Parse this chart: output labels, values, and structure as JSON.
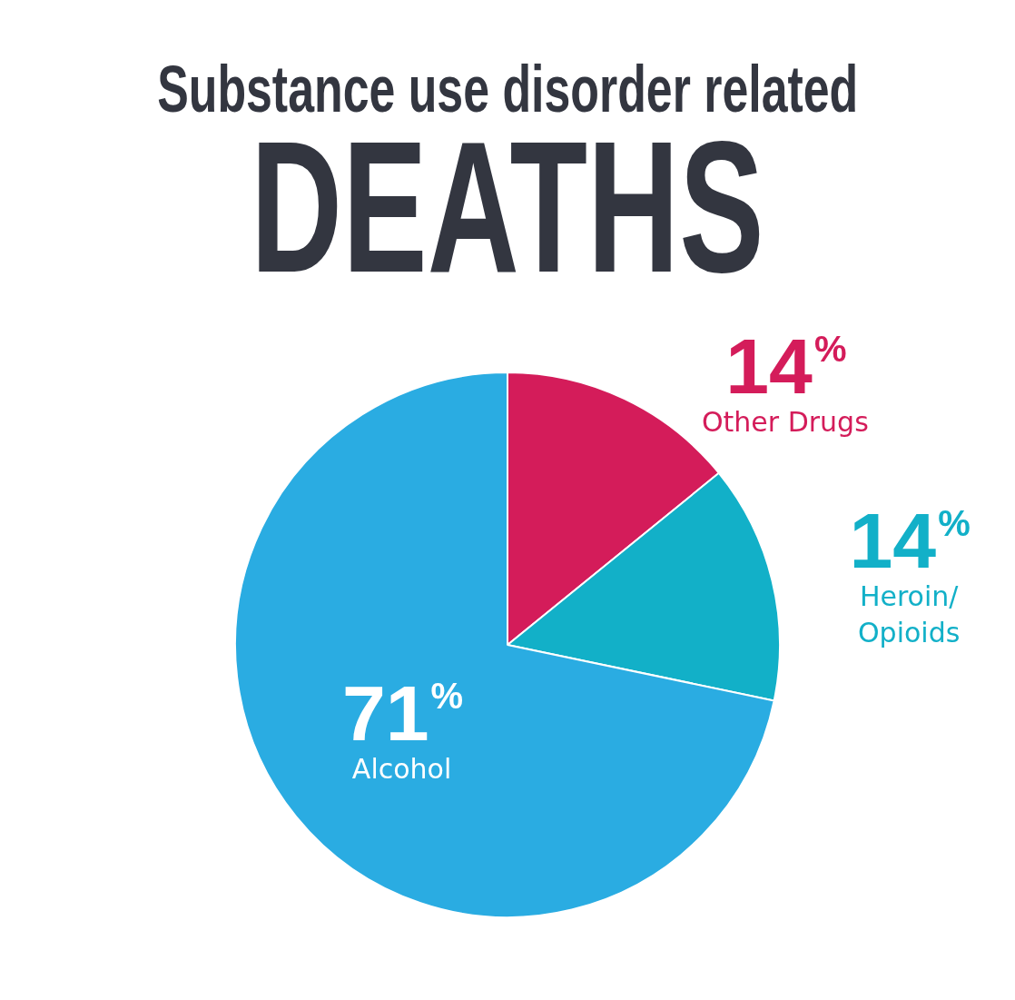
{
  "chart_data": {
    "type": "pie",
    "title": "Substance use disorder related",
    "subtitle": "DEATHS",
    "categories": [
      "Other Drugs",
      "Heroin/Opioids",
      "Alcohol"
    ],
    "values": [
      14,
      14,
      71
    ],
    "value_labels": [
      "14%",
      "14%",
      "71%"
    ],
    "colors": [
      "#d41c5a",
      "#12b0c8",
      "#2aace2"
    ],
    "legend": false
  }
}
